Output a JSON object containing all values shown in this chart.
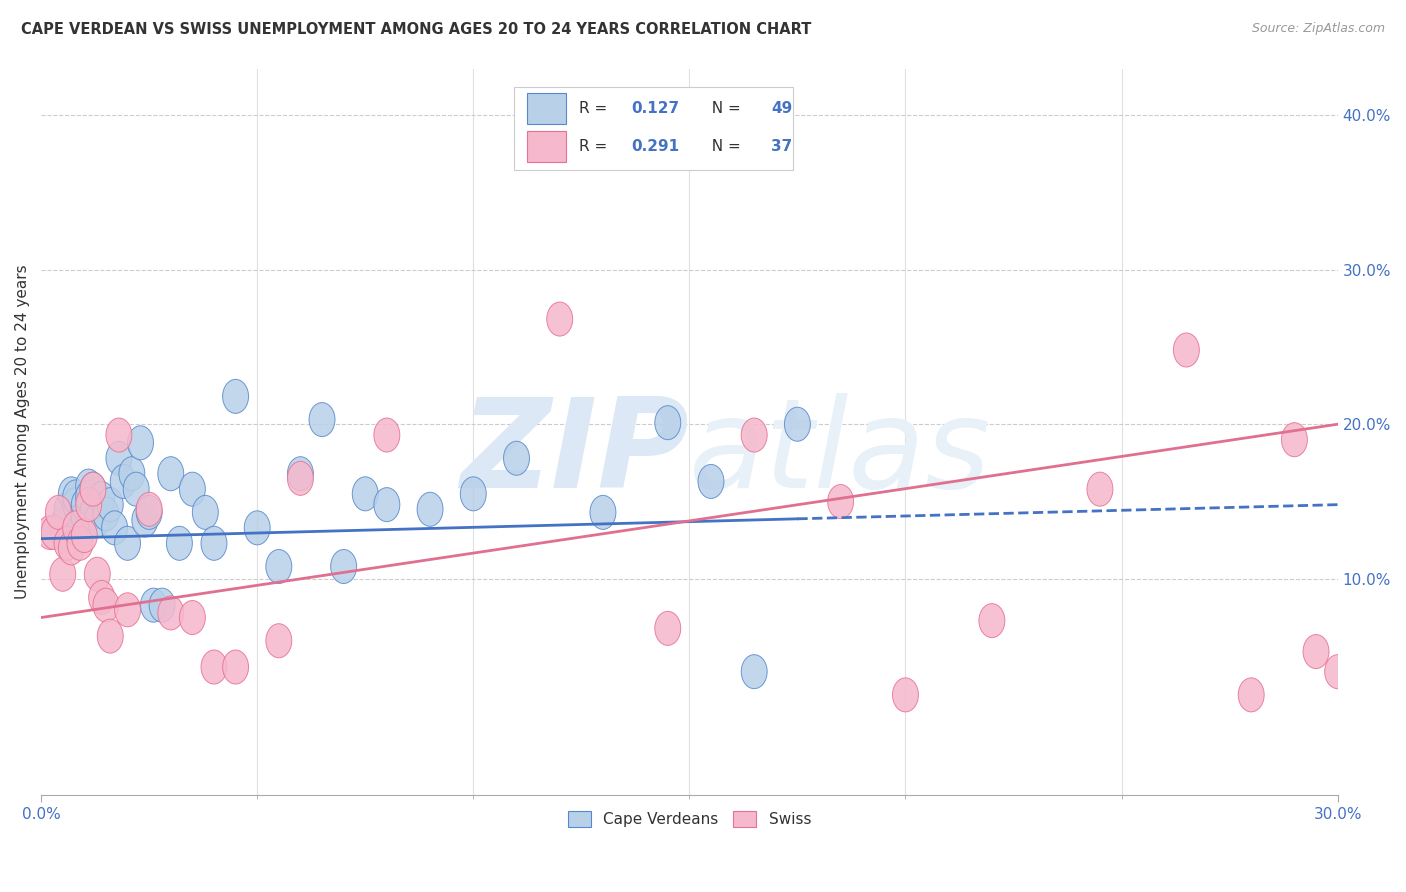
{
  "title": "CAPE VERDEAN VS SWISS UNEMPLOYMENT AMONG AGES 20 TO 24 YEARS CORRELATION CHART",
  "source": "Source: ZipAtlas.com",
  "ylabel_label": "Unemployment Among Ages 20 to 24 years",
  "legend_label1": "Cape Verdeans",
  "legend_label2": "Swiss",
  "R1": "0.127",
  "N1": "49",
  "R2": "0.291",
  "N2": "37",
  "color_blue_fill": "#b8d0e8",
  "color_pink_fill": "#f5b8cc",
  "color_blue_edge": "#5588cc",
  "color_pink_edge": "#e87090",
  "color_trend_blue": "#4472c4",
  "color_trend_pink": "#e07090",
  "watermark_zip": "ZIP",
  "watermark_atlas": "atlas",
  "watermark_color": "#dce8f5",
  "cv_x": [
    0.005,
    0.005,
    0.006,
    0.007,
    0.008,
    0.008,
    0.009,
    0.01,
    0.01,
    0.011,
    0.011,
    0.012,
    0.012,
    0.013,
    0.014,
    0.015,
    0.016,
    0.017,
    0.018,
    0.019,
    0.02,
    0.021,
    0.022,
    0.023,
    0.024,
    0.025,
    0.026,
    0.028,
    0.03,
    0.032,
    0.035,
    0.038,
    0.04,
    0.045,
    0.05,
    0.055,
    0.06,
    0.065,
    0.07,
    0.075,
    0.08,
    0.09,
    0.1,
    0.11,
    0.13,
    0.145,
    0.155,
    0.165,
    0.175
  ],
  "cv_y": [
    0.13,
    0.135,
    0.145,
    0.155,
    0.148,
    0.153,
    0.138,
    0.14,
    0.148,
    0.16,
    0.153,
    0.158,
    0.143,
    0.138,
    0.152,
    0.142,
    0.148,
    0.133,
    0.178,
    0.163,
    0.123,
    0.168,
    0.158,
    0.188,
    0.138,
    0.143,
    0.083,
    0.083,
    0.168,
    0.123,
    0.158,
    0.143,
    0.123,
    0.218,
    0.133,
    0.108,
    0.168,
    0.203,
    0.108,
    0.155,
    0.148,
    0.145,
    0.155,
    0.178,
    0.143,
    0.201,
    0.163,
    0.04,
    0.2
  ],
  "sw_x": [
    0.002,
    0.003,
    0.004,
    0.005,
    0.006,
    0.007,
    0.008,
    0.009,
    0.01,
    0.011,
    0.012,
    0.013,
    0.014,
    0.015,
    0.016,
    0.018,
    0.02,
    0.025,
    0.03,
    0.035,
    0.04,
    0.045,
    0.055,
    0.06,
    0.08,
    0.12,
    0.145,
    0.165,
    0.185,
    0.2,
    0.22,
    0.245,
    0.265,
    0.28,
    0.29,
    0.295,
    0.3
  ],
  "sw_y": [
    0.13,
    0.13,
    0.143,
    0.103,
    0.123,
    0.12,
    0.133,
    0.123,
    0.128,
    0.148,
    0.158,
    0.103,
    0.088,
    0.083,
    0.063,
    0.193,
    0.08,
    0.145,
    0.078,
    0.075,
    0.043,
    0.043,
    0.06,
    0.165,
    0.193,
    0.268,
    0.068,
    0.193,
    0.15,
    0.025,
    0.073,
    0.158,
    0.248,
    0.025,
    0.19,
    0.053,
    0.04
  ],
  "xlim": [
    0.0,
    0.3
  ],
  "ylim": [
    -0.04,
    0.43
  ],
  "trend_blue_y_start": 0.126,
  "trend_blue_y_end": 0.148,
  "trend_blue_solid_end_x": 0.175,
  "trend_pink_y_start": 0.075,
  "trend_pink_y_end": 0.2,
  "background_color": "#ffffff",
  "grid_color": "#cccccc",
  "title_color": "#333333",
  "source_color": "#999999",
  "axis_color": "#4472c4",
  "text_color": "#333333"
}
